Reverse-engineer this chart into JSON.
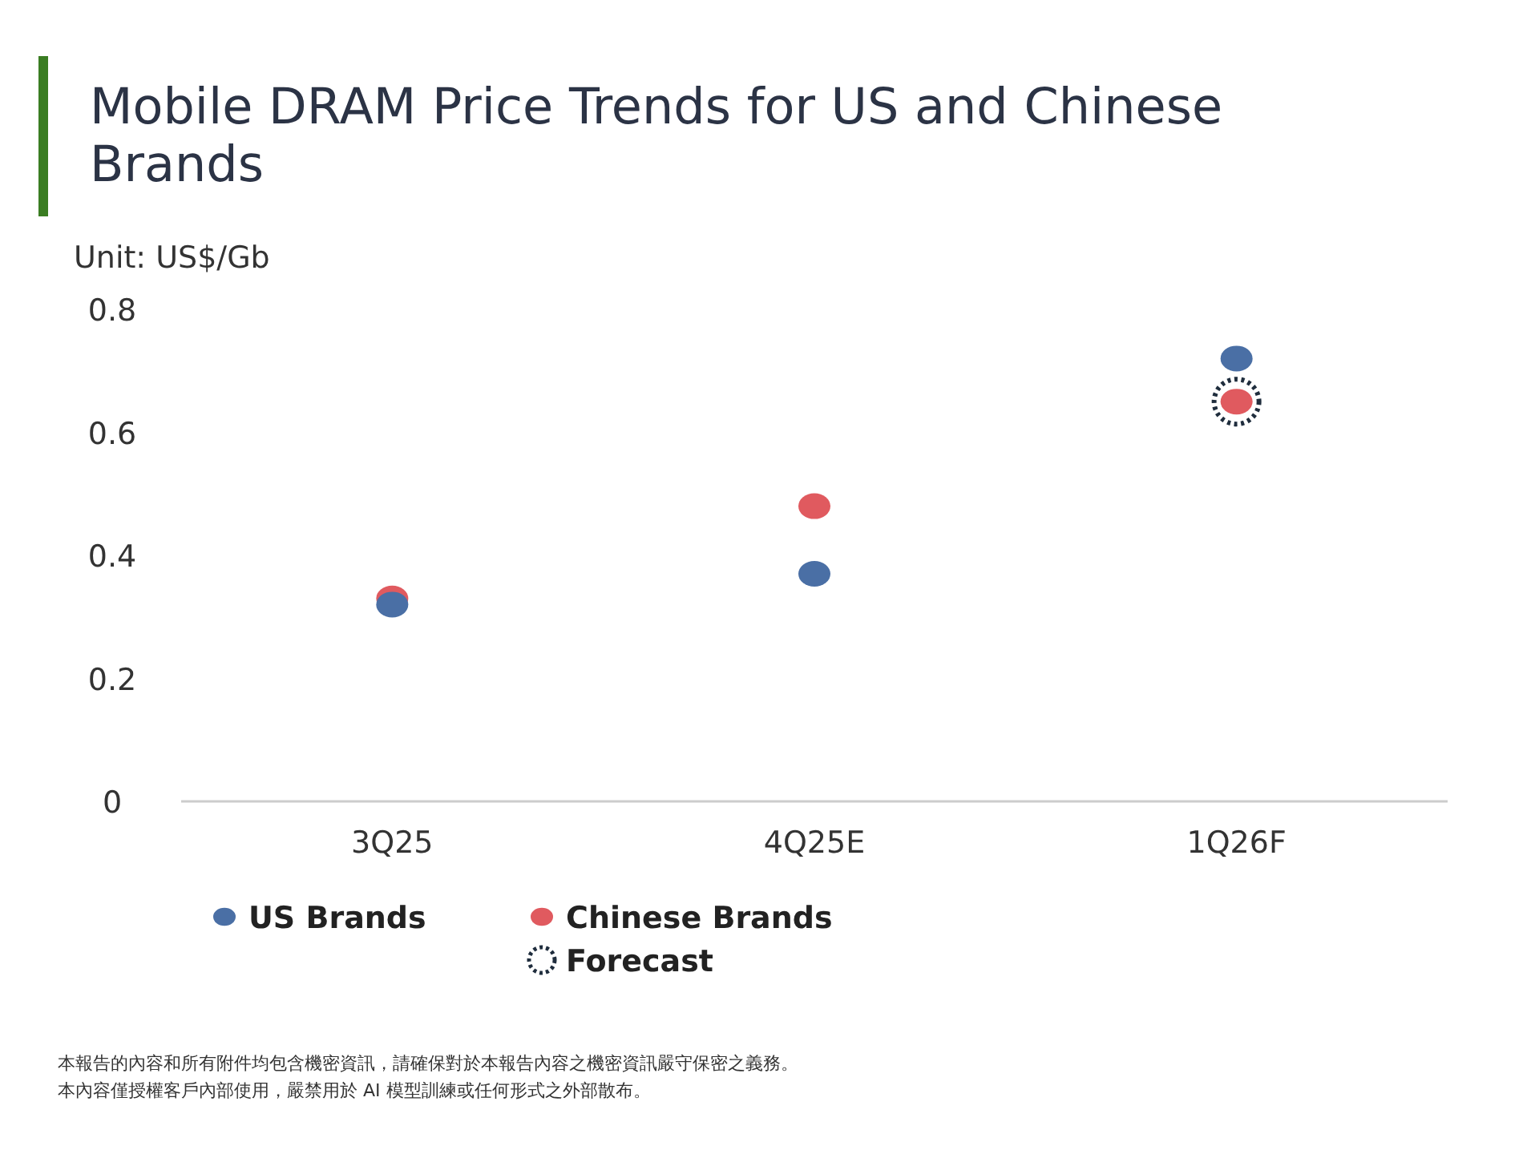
{
  "chart_data": {
    "type": "scatter",
    "title": "Mobile DRAM Price Trends for US and Chinese Brands",
    "ylabel": "Unit: US$/Gb",
    "categories": [
      "3Q25",
      "4Q25E",
      "1Q26F"
    ],
    "series": [
      {
        "name": "US Brands",
        "color": "#4a6fa5",
        "values": [
          0.32,
          0.37,
          0.72
        ]
      },
      {
        "name": "Chinese Brands",
        "color": "#e05a5f",
        "values": [
          0.33,
          0.48,
          0.65
        ]
      },
      {
        "name": "Forecast",
        "color": "#1f2d3d",
        "marker": "circle",
        "line_style": "dotted",
        "values": [
          null,
          null,
          0.65
        ]
      }
    ],
    "ylim": [
      0,
      0.8
    ],
    "yticks": [
      0,
      0.2,
      0.4,
      0.6,
      0.8
    ],
    "grid": false,
    "legend": "bottom",
    "marker": "circle",
    "annotations": [
      "本報告的內容和所有附件均包含機密資訊，請確保對於本報告內容之機密資訊嚴守保密之義務。",
      "本內容僅授權客戶內部使用，嚴禁用於 AI 模型訓練或任何形式之外部散布。"
    ]
  }
}
